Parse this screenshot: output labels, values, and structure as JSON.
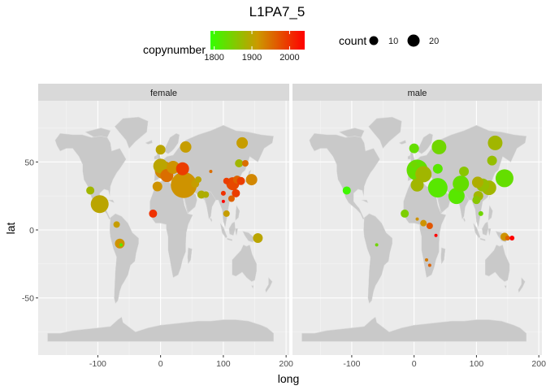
{
  "chart_data": {
    "type": "scatter",
    "title": "L1PA7_5",
    "xlabel": "long",
    "ylabel": "lat",
    "xlim": [
      -195,
      205
    ],
    "ylim": [
      -92,
      95
    ],
    "x_ticks": [
      -100,
      0,
      100,
      200
    ],
    "y_ticks": [
      -50,
      0,
      50
    ],
    "x_tick_labels": [
      "-100",
      "0",
      "100",
      "200"
    ],
    "y_tick_labels": [
      "-50",
      "0",
      "50"
    ],
    "grid": true,
    "background_map": "world-landmasses",
    "facets": [
      "female",
      "male"
    ],
    "legend": {
      "position": "top",
      "color": {
        "title": "copynumber",
        "range": [
          1790,
          2040
        ],
        "ticks": [
          1800,
          1900,
          2000
        ],
        "tick_labels": [
          "1800",
          "1900",
          "2000"
        ],
        "colors": {
          "low": "#33ff00",
          "mid": "#cc9900",
          "high": "#ff0000"
        }
      },
      "size": {
        "title": "count",
        "entries": [
          {
            "value": 10,
            "label": "10"
          },
          {
            "value": 20,
            "label": "20"
          }
        ]
      }
    },
    "series": [
      {
        "name": "female",
        "points": [
          {
            "x": 0,
            "y": 59,
            "size": 6,
            "color": 1900
          },
          {
            "x": 40,
            "y": 61,
            "size": 7,
            "color": 1910
          },
          {
            "x": 130,
            "y": 64,
            "size": 7,
            "color": 1910
          },
          {
            "x": 125,
            "y": 49,
            "size": 5,
            "color": 1880
          },
          {
            "x": 135,
            "y": 49,
            "size": 4,
            "color": 1950
          },
          {
            "x": 0,
            "y": 47,
            "size": 9,
            "color": 1900
          },
          {
            "x": 5,
            "y": 44,
            "size": 11,
            "color": 1930
          },
          {
            "x": 10,
            "y": 40,
            "size": 8,
            "color": 1950
          },
          {
            "x": 20,
            "y": 46,
            "size": 8,
            "color": 1920
          },
          {
            "x": 35,
            "y": 45,
            "size": 8,
            "color": 1990
          },
          {
            "x": -5,
            "y": 32,
            "size": 6,
            "color": 1920
          },
          {
            "x": 37,
            "y": 33,
            "size": 16,
            "color": 1920
          },
          {
            "x": 55,
            "y": 34,
            "size": 5,
            "color": 1910
          },
          {
            "x": 60,
            "y": 37,
            "size": 4,
            "color": 1900
          },
          {
            "x": 80,
            "y": 43,
            "size": 2,
            "color": 1950
          },
          {
            "x": 65,
            "y": 26,
            "size": 5,
            "color": 1890
          },
          {
            "x": 72,
            "y": 26,
            "size": 4,
            "color": 1890
          },
          {
            "x": 105,
            "y": 36,
            "size": 4,
            "color": 1990
          },
          {
            "x": 115,
            "y": 34,
            "size": 8,
            "color": 1980
          },
          {
            "x": 122,
            "y": 37,
            "size": 5,
            "color": 1960
          },
          {
            "x": 128,
            "y": 36,
            "size": 5,
            "color": 1990
          },
          {
            "x": 113,
            "y": 23,
            "size": 4,
            "color": 1960
          },
          {
            "x": 100,
            "y": 27,
            "size": 3,
            "color": 2000
          },
          {
            "x": 100,
            "y": 21,
            "size": 2,
            "color": 2040
          },
          {
            "x": 120,
            "y": 27,
            "size": 5,
            "color": 1990
          },
          {
            "x": 145,
            "y": 37,
            "size": 7,
            "color": 1930
          },
          {
            "x": -112,
            "y": 29,
            "size": 5,
            "color": 1880
          },
          {
            "x": -97,
            "y": 19,
            "size": 11,
            "color": 1900
          },
          {
            "x": -12,
            "y": 12,
            "size": 5,
            "color": 2000
          },
          {
            "x": -70,
            "y": 4,
            "size": 4,
            "color": 1910
          },
          {
            "x": -65,
            "y": -10,
            "size": 6,
            "color": 1920
          },
          {
            "x": -63,
            "y": -11,
            "size": 2,
            "color": 1820
          },
          {
            "x": 105,
            "y": 12,
            "size": 4,
            "color": 1910
          },
          {
            "x": 155,
            "y": -6,
            "size": 6,
            "color": 1900
          }
        ]
      },
      {
        "name": "male",
        "points": [
          {
            "x": 0,
            "y": 60,
            "size": 6,
            "color": 1830
          },
          {
            "x": 40,
            "y": 61,
            "size": 9,
            "color": 1840
          },
          {
            "x": 130,
            "y": 64,
            "size": 9,
            "color": 1880
          },
          {
            "x": 125,
            "y": 51,
            "size": 6,
            "color": 1870
          },
          {
            "x": 0,
            "y": 48,
            "size": 4,
            "color": 1840
          },
          {
            "x": 5,
            "y": 44,
            "size": 13,
            "color": 1830
          },
          {
            "x": 15,
            "y": 41,
            "size": 10,
            "color": 1880
          },
          {
            "x": 38,
            "y": 45,
            "size": 6,
            "color": 1820
          },
          {
            "x": 5,
            "y": 33,
            "size": 8,
            "color": 1880
          },
          {
            "x": 38,
            "y": 31,
            "size": 12,
            "color": 1820
          },
          {
            "x": 68,
            "y": 25,
            "size": 10,
            "color": 1820
          },
          {
            "x": 75,
            "y": 34,
            "size": 10,
            "color": 1830
          },
          {
            "x": 80,
            "y": 43,
            "size": 6,
            "color": 1860
          },
          {
            "x": 102,
            "y": 35,
            "size": 7,
            "color": 1890
          },
          {
            "x": 110,
            "y": 33,
            "size": 8,
            "color": 1870
          },
          {
            "x": 120,
            "y": 31,
            "size": 9,
            "color": 1880
          },
          {
            "x": 103,
            "y": 25,
            "size": 6,
            "color": 1880
          },
          {
            "x": 100,
            "y": 22,
            "size": 5,
            "color": 1860
          },
          {
            "x": 145,
            "y": 38,
            "size": 11,
            "color": 1830
          },
          {
            "x": -108,
            "y": 29,
            "size": 5,
            "color": 1800
          },
          {
            "x": -15,
            "y": 12,
            "size": 5,
            "color": 1850
          },
          {
            "x": 5,
            "y": 8,
            "size": 2,
            "color": 1920
          },
          {
            "x": 15,
            "y": 5,
            "size": 4,
            "color": 1920
          },
          {
            "x": 25,
            "y": 3,
            "size": 4,
            "color": 1970
          },
          {
            "x": 35,
            "y": -4,
            "size": 2,
            "color": 2040
          },
          {
            "x": -60,
            "y": -11,
            "size": 2,
            "color": 1840
          },
          {
            "x": 20,
            "y": -22,
            "size": 2,
            "color": 1940
          },
          {
            "x": 25,
            "y": -26,
            "size": 2,
            "color": 1960
          },
          {
            "x": 107,
            "y": 12,
            "size": 3,
            "color": 1840
          },
          {
            "x": 145,
            "y": -5,
            "size": 5,
            "color": 1920
          },
          {
            "x": 150,
            "y": -6,
            "size": 3,
            "color": 1960
          },
          {
            "x": 157,
            "y": -6,
            "size": 3,
            "color": 2040
          }
        ]
      }
    ]
  }
}
